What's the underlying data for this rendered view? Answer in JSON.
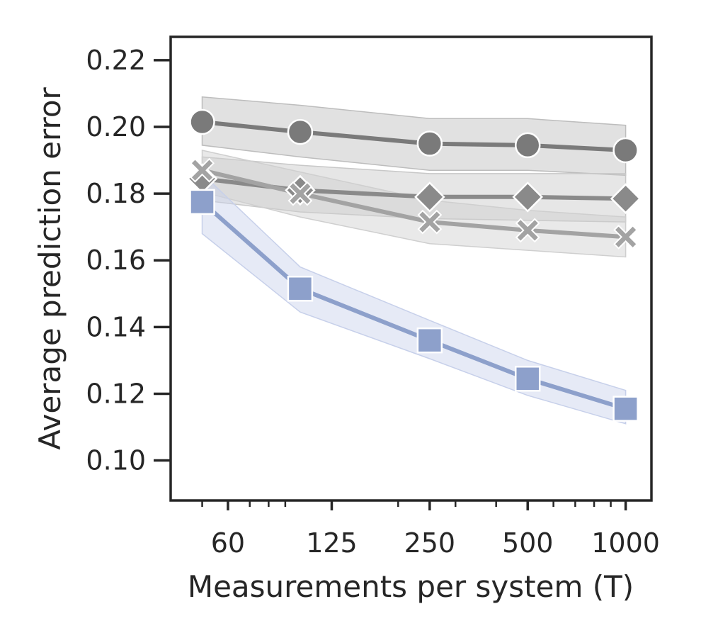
{
  "chart_data": {
    "type": "line",
    "xlabel": "Measurements per system (T)",
    "ylabel": "Average prediction error",
    "xscale": "log",
    "xlim": [
      40,
      1200
    ],
    "ylim": [
      0.088,
      0.227
    ],
    "x_tick_values": [
      60,
      125,
      250,
      500,
      1000
    ],
    "x_tick_labels": [
      "60",
      "125",
      "250",
      "500",
      "1000"
    ],
    "y_tick_values": [
      0.1,
      0.12,
      0.14,
      0.16,
      0.18,
      0.2,
      0.22
    ],
    "y_tick_labels": [
      "0.10",
      "0.12",
      "0.14",
      "0.16",
      "0.18",
      "0.20",
      "0.22"
    ],
    "x": [
      50,
      100,
      250,
      500,
      1000
    ],
    "grid": false,
    "legend": "none",
    "series": [
      {
        "marker": "circle",
        "color": "#7a7a7a",
        "band_color": "#bdbdbd",
        "values": [
          0.2015,
          0.1985,
          0.195,
          0.1945,
          0.193
        ],
        "lower": [
          0.1945,
          0.191,
          0.187,
          0.187,
          0.1855
        ],
        "upper": [
          0.209,
          0.2065,
          0.2025,
          0.2025,
          0.2005
        ]
      },
      {
        "marker": "diamond",
        "color": "#8a8a8a",
        "band_color": "#c8c8c8",
        "values": [
          0.1845,
          0.181,
          0.179,
          0.179,
          0.1785
        ],
        "lower": [
          0.178,
          0.1745,
          0.1725,
          0.172,
          0.1715
        ],
        "upper": [
          0.191,
          0.1885,
          0.186,
          0.186,
          0.186
        ]
      },
      {
        "marker": "x",
        "color": "#a3a3a3",
        "band_color": "#cfcfcf",
        "values": [
          0.187,
          0.18,
          0.1715,
          0.169,
          0.167
        ],
        "lower": [
          0.1805,
          0.173,
          0.165,
          0.163,
          0.161
        ],
        "upper": [
          0.193,
          0.1865,
          0.178,
          0.175,
          0.173
        ]
      },
      {
        "marker": "square",
        "color": "#8da0cb",
        "band_color": "#c7d0ea",
        "values": [
          0.1775,
          0.1515,
          0.136,
          0.1245,
          0.1155
        ],
        "lower": [
          0.168,
          0.1445,
          0.1305,
          0.1195,
          0.111
        ],
        "upper": [
          0.186,
          0.158,
          0.142,
          0.13,
          0.121
        ]
      }
    ]
  }
}
